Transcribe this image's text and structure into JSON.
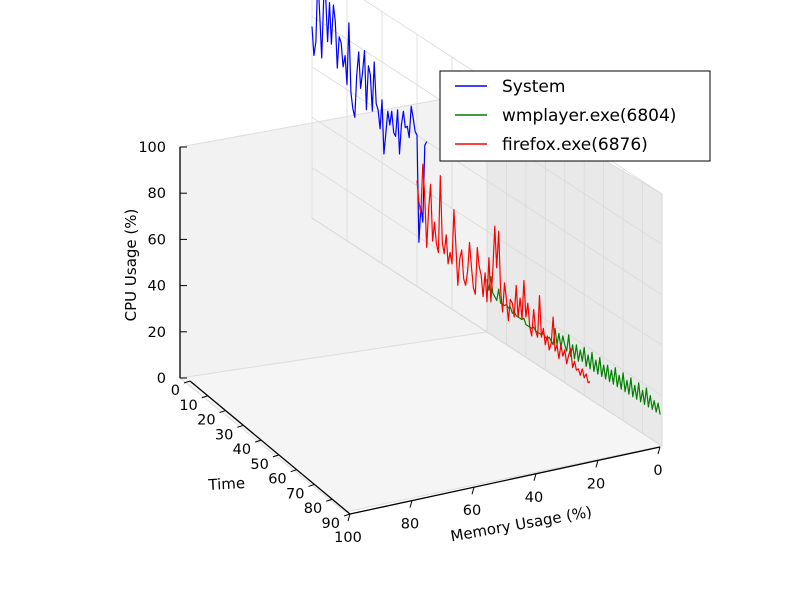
{
  "chart_data": {
    "type": "line3d",
    "xlabel": "Memory Usage (%)",
    "ylabel": "Time",
    "zlabel": "CPU Usage (%)",
    "xlim": [
      0,
      100
    ],
    "ylim": [
      0,
      90
    ],
    "zlim": [
      0,
      100
    ],
    "x_ticks": [
      "0",
      "20",
      "40",
      "60",
      "80",
      "100"
    ],
    "y_ticks": [
      "0",
      "10",
      "20",
      "30",
      "40",
      "50",
      "60",
      "70",
      "80",
      "90"
    ],
    "z_ticks": [
      "0",
      "20",
      "40",
      "60",
      "80",
      "100"
    ],
    "grid": true,
    "legend_position": "top-right",
    "series": [
      {
        "name": "System",
        "color": "#0000ff",
        "memory": 100,
        "time": [
          0,
          1,
          2,
          3,
          4,
          5,
          6,
          7,
          8,
          9,
          10,
          11,
          12,
          13,
          14,
          15,
          16,
          17,
          18,
          19,
          20,
          21,
          22,
          23,
          24,
          25,
          26,
          27,
          28,
          29,
          30,
          31,
          32,
          33,
          34,
          35,
          36,
          37,
          38,
          39,
          40,
          41,
          42,
          43,
          44,
          45,
          46,
          47,
          48,
          49,
          50,
          51,
          52,
          53,
          54,
          55,
          56,
          57,
          58,
          59
        ],
        "cpu": [
          76,
          65,
          71,
          98,
          82,
          66,
          90,
          92,
          74,
          90,
          74,
          90,
          84,
          66,
          79,
          77,
          68,
          73,
          62,
          87,
          60,
          54,
          51,
          68,
          78,
          64,
          71,
          80,
          57,
          75,
          72,
          58,
          78,
          62,
          60,
          53,
          65,
          44,
          53,
          62,
          57,
          63,
          55,
          54,
          65,
          48,
          60,
          66,
          60,
          61,
          57,
          70,
          66,
          61,
          60,
          18,
          33,
          27,
          58,
          60
        ]
      },
      {
        "name": "wmplayer.exe(6804)",
        "color": "#008000",
        "memory": 0,
        "time": [
          0,
          1,
          2,
          3,
          4,
          5,
          6,
          7,
          8,
          9,
          10,
          11,
          12,
          13,
          14,
          15,
          16,
          17,
          18,
          19,
          20,
          21,
          22,
          23,
          24,
          25,
          26,
          27,
          28,
          29,
          30,
          31,
          32,
          33,
          34,
          35,
          36,
          37,
          38,
          39,
          40,
          41,
          42,
          43,
          44,
          45,
          46,
          47,
          48,
          49,
          50,
          51,
          52,
          53,
          54,
          55,
          56,
          57,
          58,
          59,
          60,
          61,
          62,
          63,
          64,
          65,
          66,
          67,
          68,
          69,
          70,
          71,
          72,
          73,
          74,
          75,
          76,
          77,
          78,
          79,
          80,
          81,
          82,
          83,
          84,
          85,
          86,
          87,
          88,
          89
        ],
        "cpu": [
          21,
          17,
          23,
          17,
          16,
          15,
          20,
          15,
          15,
          15,
          16,
          15,
          16,
          14,
          15,
          14,
          14,
          14,
          14,
          15,
          13,
          13,
          13,
          13,
          14,
          13,
          13,
          13,
          13,
          14,
          13,
          13,
          14,
          13,
          12,
          19,
          13,
          18,
          13,
          18,
          15,
          13,
          20,
          12,
          17,
          12,
          18,
          12,
          17,
          13,
          19,
          12,
          17,
          12,
          19,
          12,
          17,
          12,
          19,
          12,
          17,
          12,
          18,
          12,
          17,
          12,
          19,
          12,
          17,
          12,
          19,
          12,
          17,
          12,
          19,
          12,
          17,
          12,
          19,
          12,
          17,
          12,
          19,
          12,
          17,
          12,
          16,
          12,
          16,
          12
        ]
      },
      {
        "name": "firefox.exe(6876)",
        "color": "#ff0000",
        "memory": 40,
        "time": [
          0,
          1,
          2,
          3,
          4,
          5,
          6,
          7,
          8,
          9,
          10,
          11,
          12,
          13,
          14,
          15,
          16,
          17,
          18,
          19,
          20,
          21,
          22,
          23,
          24,
          25,
          26,
          27,
          28,
          29,
          30,
          31,
          32,
          33,
          34,
          35,
          36,
          37,
          38,
          39,
          40,
          41,
          42,
          43,
          44,
          45,
          46,
          47,
          48,
          49,
          50,
          51,
          52,
          53,
          54,
          55,
          56,
          57,
          58,
          59,
          60,
          61,
          62,
          63,
          64,
          65,
          66,
          67,
          68,
          69,
          70,
          71,
          72,
          73,
          74,
          75,
          76,
          77,
          78,
          79,
          80,
          81,
          82,
          83,
          84,
          85,
          86,
          87,
          88,
          89
        ],
        "cpu": [
          42,
          34,
          30,
          50,
          37,
          18,
          34,
          44,
          22,
          30,
          22,
          19,
          50,
          24,
          20,
          28,
          17,
          22,
          18,
          40,
          26,
          11,
          22,
          26,
          15,
          13,
          19,
          31,
          22,
          14,
          12,
          31,
          24,
          21,
          13,
          23,
          12,
          30,
          13,
          26,
          44,
          28,
          43,
          20,
          12,
          24,
          18,
          10,
          19,
          18,
          13,
          26,
          14,
          22,
          14,
          30,
          16,
          22,
          13,
          10,
          21,
          13,
          11,
          28,
          12,
          16,
          10,
          14,
          9,
          12,
          23,
          10,
          13,
          8,
          14,
          10,
          13,
          8,
          12,
          15,
          8,
          11,
          8,
          9,
          7,
          10,
          7,
          9,
          6,
          7
        ]
      }
    ]
  }
}
